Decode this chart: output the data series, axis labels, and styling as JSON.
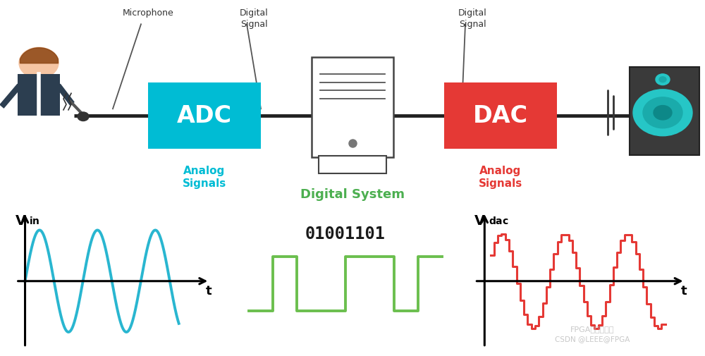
{
  "bg_color": "#ffffff",
  "adc_color": "#00BCD4",
  "dac_color": "#E53935",
  "adc_text": "ADC",
  "dac_text": "DAC",
  "analog_signals_color": "#00BCD4",
  "analog_signals_right_color": "#E53935",
  "digital_system_color": "#4CAF50",
  "label_microphone": "Microphone",
  "label_digital_signal_left": "Digital\nSignal",
  "label_digital_signal_right": "Digital\nSignal",
  "label_analog_left": "Analog\nSignals",
  "label_analog_right": "Analog\nSignals",
  "label_digital_system": "Digital System",
  "label_t_left": "t",
  "label_t_right": "t",
  "binary_label": "01001101",
  "binary_color": "#1a1a1a",
  "sine_color": "#29B6D0",
  "square_color": "#6BBF4E",
  "dac_wave_color": "#E53935",
  "watermark_text1": "FPGA开源工作室",
  "watermark_text2": "CSDN @LEEE@FPGA",
  "watermark_color": "#bbbbbb",
  "line_color": "#222222"
}
